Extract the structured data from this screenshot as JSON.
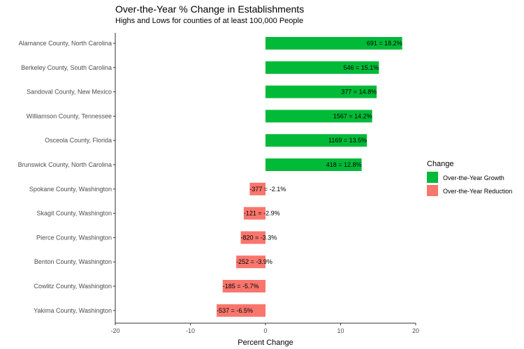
{
  "chart_data": {
    "type": "bar",
    "orientation": "horizontal",
    "title": "Over-the-Year % Change in Establishments",
    "subtitle": "Highs and Lows for counties of at least 100,000 People",
    "xlabel": "Percent Change",
    "ylabel": "",
    "xlim": [
      -20,
      20
    ],
    "xticks": [
      -20,
      -10,
      0,
      10,
      20
    ],
    "grid": false,
    "legend_position": "right",
    "legend_title": "Change",
    "legend": [
      {
        "label": "Over-the-Year Growth",
        "color": "#00ba38"
      },
      {
        "label": "Over-the-Year Reduction",
        "color": "#f8766d"
      }
    ],
    "categories": [
      "Alamance County, North Carolina",
      "Berkeley County, South Carolina",
      "Sandoval County, New Mexico",
      "Williamson County, Tennessee",
      "Osceola County, Florida",
      "Brunswick County, North Carolina",
      "Spokane County, Washington",
      "Skagit County, Washington",
      "Pierce County, Washington",
      "Benton County, Washington",
      "Cowlitz County, Washington",
      "Yakima County, Washington"
    ],
    "values": [
      18.2,
      15.1,
      14.8,
      14.2,
      13.5,
      12.8,
      -2.1,
      -2.9,
      -3.3,
      -3.9,
      -5.7,
      -6.5
    ],
    "labels": [
      "691 = 18.2%",
      "546 = 15.1%",
      "377 = 14.8%",
      "1567 = 14.2%",
      "1169 = 13.5%",
      "418 = 12.8%",
      "-377 = -2.1%",
      "-121 = -2.9%",
      "-820 = -3.3%",
      "-252 = -3.9%",
      "-185 = -5.7%",
      "-537 = -6.5%"
    ]
  }
}
